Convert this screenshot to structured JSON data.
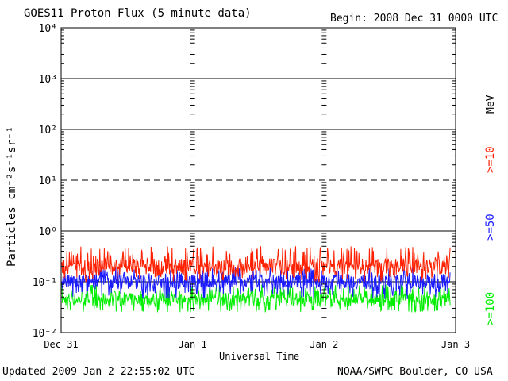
{
  "header": {
    "title": "GOES11 Proton Flux (5 minute data)",
    "begin": "Begin: 2008 Dec 31 0000 UTC"
  },
  "footer": {
    "updated": "Updated 2009 Jan  2 22:55:02 UTC",
    "credit": "NOAA/SWPC Boulder, CO USA"
  },
  "chart_data": {
    "type": "line",
    "title": "GOES11 Proton Flux (5 minute data)",
    "xlabel": "Universal Time",
    "ylabel": "Particles cm⁻²s⁻¹sr⁻¹",
    "yscale": "log",
    "ylim": [
      0.01,
      10000
    ],
    "x_ticks": [
      "Dec 31",
      "Jan 1",
      "Jan 2",
      "Jan 3"
    ],
    "xlim": [
      "2008-12-31 00:00",
      "2009-01-03 00:00"
    ],
    "y_ticks": [
      "10⁻²",
      "10⁻¹",
      "10⁰",
      "10¹",
      "10²",
      "10³",
      "10⁴"
    ],
    "reference_lines": [
      {
        "y": 0.1,
        "style": "solid"
      },
      {
        "y": 1,
        "style": "solid"
      },
      {
        "y": 10,
        "style": "dashed"
      },
      {
        "y": 100,
        "style": "solid"
      },
      {
        "y": 1000,
        "style": "solid"
      }
    ],
    "unit_label": "MeV",
    "series": [
      {
        "name": ">=10",
        "color": "#ff2000",
        "x_end": "2009-01-02 23:00",
        "typical": 0.2,
        "min": 0.1,
        "max": 0.5
      },
      {
        "name": ">=50",
        "color": "#1a1aff",
        "x_end": "2009-01-02 23:00",
        "typical": 0.1,
        "min": 0.045,
        "max": 0.2
      },
      {
        "name": ">=100",
        "color": "#00ee00",
        "x_end": "2009-01-02 23:00",
        "typical": 0.045,
        "min": 0.025,
        "max": 0.09
      }
    ]
  }
}
